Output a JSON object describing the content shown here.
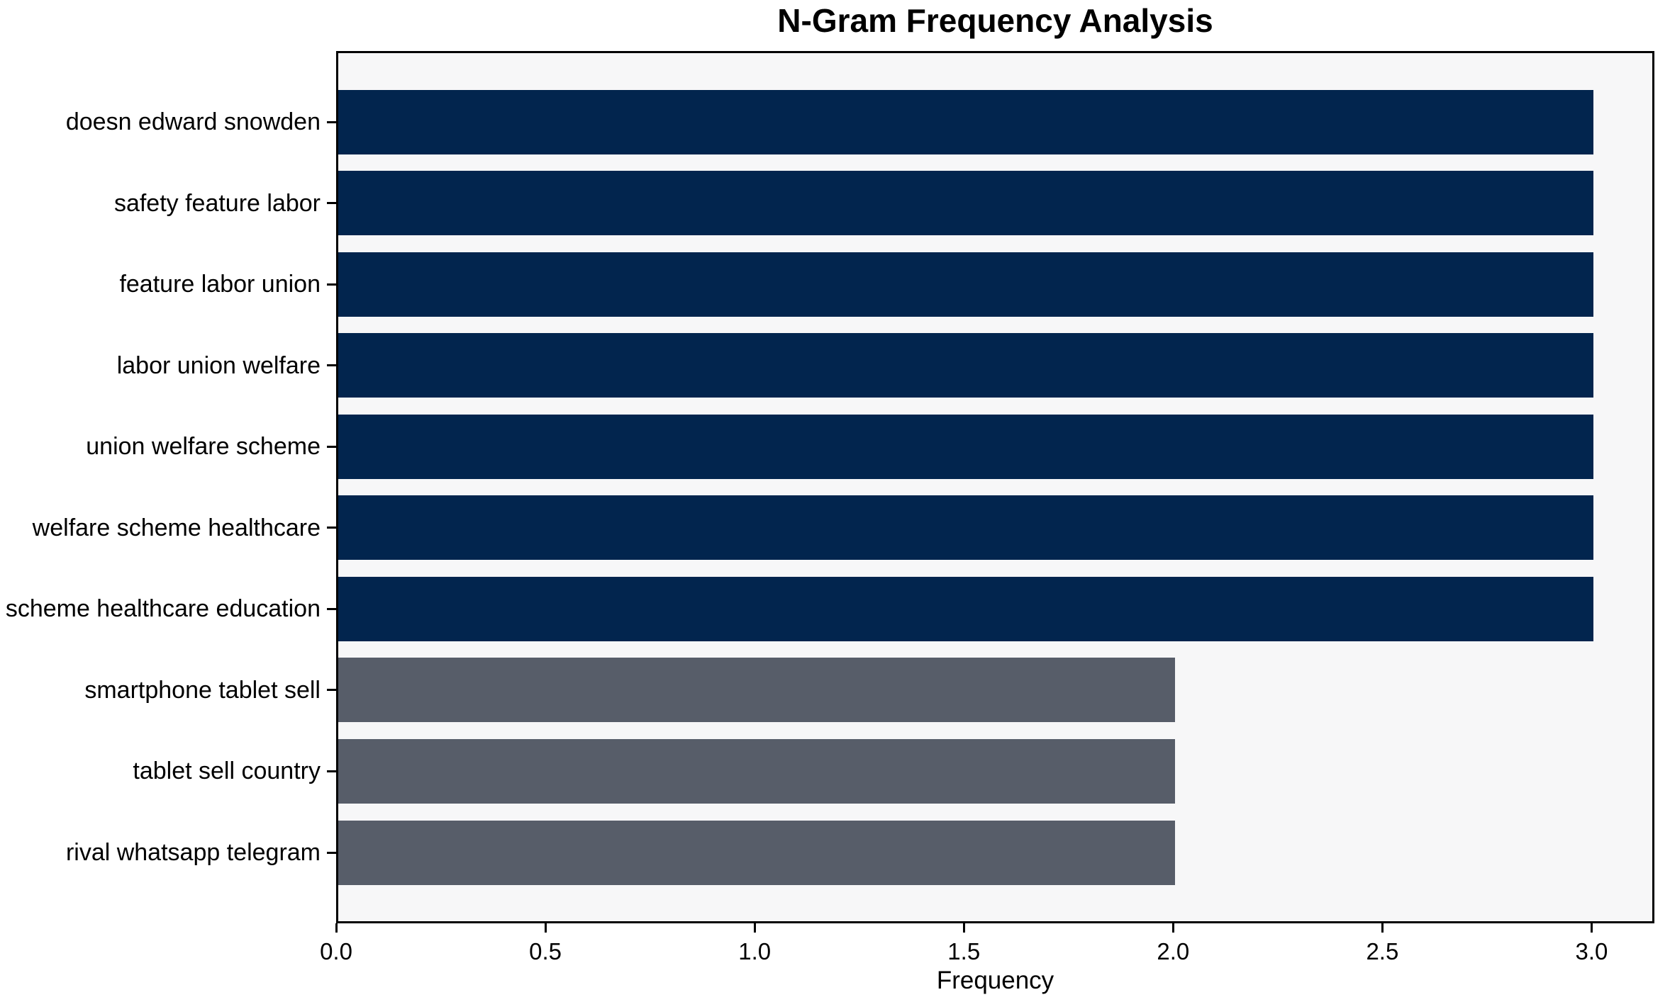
{
  "chart_data": {
    "type": "bar",
    "orientation": "horizontal",
    "title": "N-Gram Frequency Analysis",
    "xlabel": "Frequency",
    "ylabel": "",
    "categories": [
      "doesn edward snowden",
      "safety feature labor",
      "feature labor union",
      "labor union welfare",
      "union welfare scheme",
      "welfare scheme healthcare",
      "scheme healthcare education",
      "smartphone tablet sell",
      "tablet sell country",
      "rival whatsapp telegram"
    ],
    "values": [
      3,
      3,
      3,
      3,
      3,
      3,
      3,
      2,
      2,
      2
    ],
    "bar_colors": [
      "#02254e",
      "#02254e",
      "#02254e",
      "#02254e",
      "#02254e",
      "#02254e",
      "#02254e",
      "#575d69",
      "#575d69",
      "#575d69"
    ],
    "xlim": [
      0,
      3.15
    ],
    "xticks": [
      0.0,
      0.5,
      1.0,
      1.5,
      2.0,
      2.5,
      3.0
    ],
    "xtick_labels": [
      "0.0",
      "0.5",
      "1.0",
      "1.5",
      "2.0",
      "2.5",
      "3.0"
    ],
    "grid": false,
    "legend": null,
    "colors": {
      "bar_high": "#02254e",
      "bar_low": "#575d69",
      "plot_bg": "#f7f7f8",
      "frame": "#000000",
      "text": "#000000",
      "page_bg": "#ffffff"
    }
  }
}
